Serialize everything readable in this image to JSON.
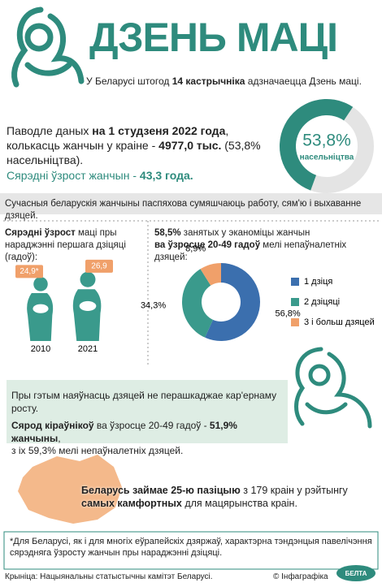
{
  "header": {
    "title": "ДЗЕНЬ МАЦІ",
    "intro": [
      "У Беларусі штогод ",
      "14 кастрычніка",
      " адзначаецца Дзень маці."
    ]
  },
  "women": {
    "text": [
      "Паводле даных ",
      "на 1 студзеня 2022 года",
      ", колькасць жанчын у краіне - ",
      "4977,0 тыс.",
      " (53,8% насельніцтва)."
    ],
    "average_age": [
      "Сярэдні ўзрост жанчын - ",
      "43,3 года."
    ],
    "chart_data": {
      "type": "donut",
      "range": [
        0,
        100
      ],
      "values": [
        53.8
      ],
      "value_labels": [
        "53,8%"
      ],
      "caption": "насельніцтва",
      "color": "#2e8b7d",
      "track_color": "#e4e4e4"
    }
  },
  "banner": "Сучасныя беларускія жанчыны паспяхова сумяшчаюць работу, сям'ю і выхаванне дзяцей.",
  "mother_age": {
    "text": [
      "Сярэдні ўзрост",
      " маці пры нараджэнні першага дзіцяці (гадоў):"
    ],
    "chart_data": {
      "type": "pictogram",
      "categories": [
        "2010",
        "2021"
      ],
      "values": [
        24.9,
        26.9
      ],
      "value_labels": [
        "24,9*",
        "26,9"
      ],
      "color": "#3a9a8c",
      "label_color": "#f0a06a"
    }
  },
  "children": {
    "text": [
      "58,5%",
      " занятых у эканоміцы жанчын ",
      "ва ўзросце 20-49 гадоў",
      " мелі непаўналетніх дзяцей:"
    ],
    "chart_data": {
      "type": "donut",
      "range": [
        0,
        100
      ],
      "categories": [
        "1 дзіця",
        "2 дзіцяці",
        "3 і больш дзяцей"
      ],
      "values": [
        56.8,
        34.3,
        8.9
      ],
      "value_labels": [
        "56,8%",
        "34,3%",
        "8,9%"
      ],
      "colors": [
        "#3b6fae",
        "#3a9a8c",
        "#f0a06a"
      ]
    }
  },
  "career": {
    "line1": "Пры гэтым наяўнасць дзяцей не перашкаджае кар'ернаму росту.",
    "line2": [
      "Сярод кіраўнікоў",
      " ва ўзросце 20-49 гадоў - ",
      "51,9% жанчыны",
      ","
    ],
    "line3": "з іх 59,3% мелі непаўналетніх дзяцей."
  },
  "ranking": [
    "Беларусь займае 25-ю пазіцыю",
    " з 179 краін у рэйтынгу ",
    "самых камфортных",
    " для мацярынства краін."
  ],
  "footer": {
    "note": "*Для Беларусі, як і для многіх еўрапейскіх дзяржаў, характэрна тэндэнцыя павелічэння сярэдняга ўзросту жанчын пры нараджэнні дзіцяці.",
    "source": "Крыніца: Нацыянальны статыстычны камітэт Беларусі.",
    "credit": "© Інфаграфіка",
    "logo": "БЕЛТА"
  }
}
